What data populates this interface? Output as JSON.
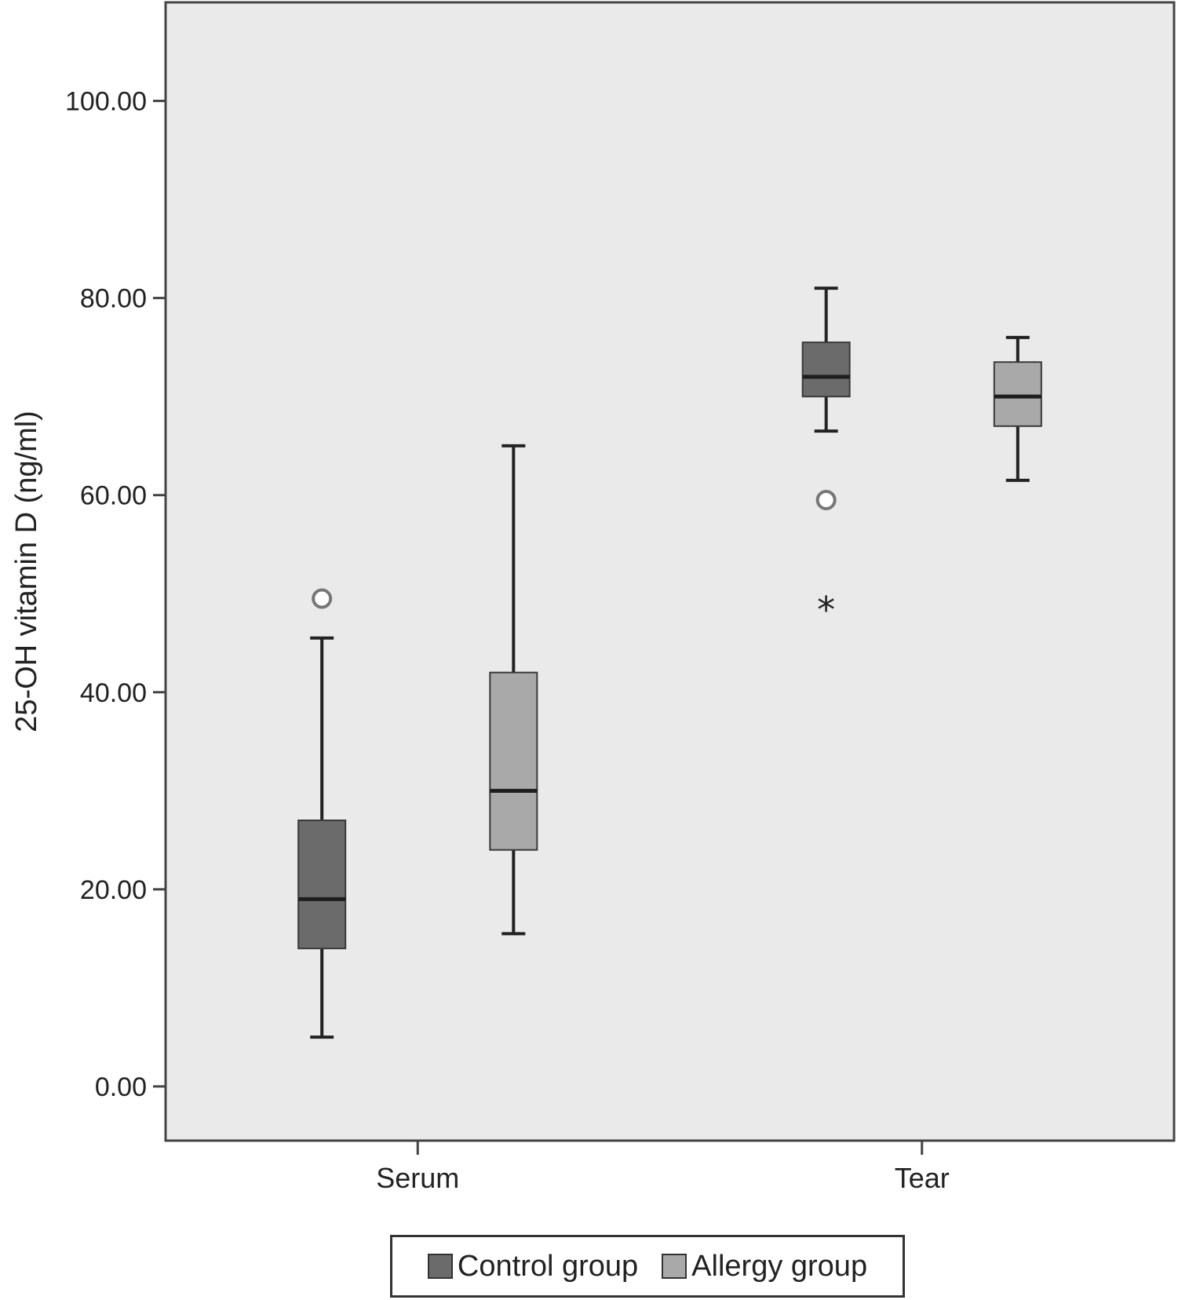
{
  "chart_data": {
    "type": "box",
    "ylabel": "25-OH vitamin D (ng/ml)",
    "ylim": [
      -5.5,
      110
    ],
    "yticks": [
      0,
      20,
      40,
      60,
      80,
      100
    ],
    "ytick_labels": [
      "0.00",
      "20.00",
      "40.00",
      "60.00",
      "80.00",
      "100.00"
    ],
    "categories": [
      "Serum",
      "Tear"
    ],
    "series": [
      {
        "name": "Control group",
        "color": "#6b6b6b",
        "boxes": [
          {
            "category": "Serum",
            "whisker_low": 5,
            "q1": 14,
            "median": 19,
            "q3": 27,
            "whisker_high": 45.5,
            "outliers": [
              {
                "value": 49.5,
                "marker": "circle"
              }
            ]
          },
          {
            "category": "Tear",
            "whisker_low": 66.5,
            "q1": 70,
            "median": 72,
            "q3": 75.5,
            "whisker_high": 81,
            "outliers": [
              {
                "value": 59.5,
                "marker": "circle"
              },
              {
                "value": 48.5,
                "marker": "star"
              }
            ]
          }
        ]
      },
      {
        "name": "Allergy group",
        "color": "#a9a9a9",
        "boxes": [
          {
            "category": "Serum",
            "whisker_low": 15.5,
            "q1": 24,
            "median": 30,
            "q3": 42,
            "whisker_high": 65,
            "outliers": []
          },
          {
            "category": "Tear",
            "whisker_low": 61.5,
            "q1": 67,
            "median": 70,
            "q3": 73.5,
            "whisker_high": 76,
            "outliers": []
          }
        ]
      }
    ],
    "legend": {
      "position": "bottom"
    },
    "grid": false
  },
  "style": {
    "plot_background": "#eaeaea",
    "frame_color": "#444444",
    "whisker_color": "#222222",
    "outlier_color": "#777777"
  }
}
